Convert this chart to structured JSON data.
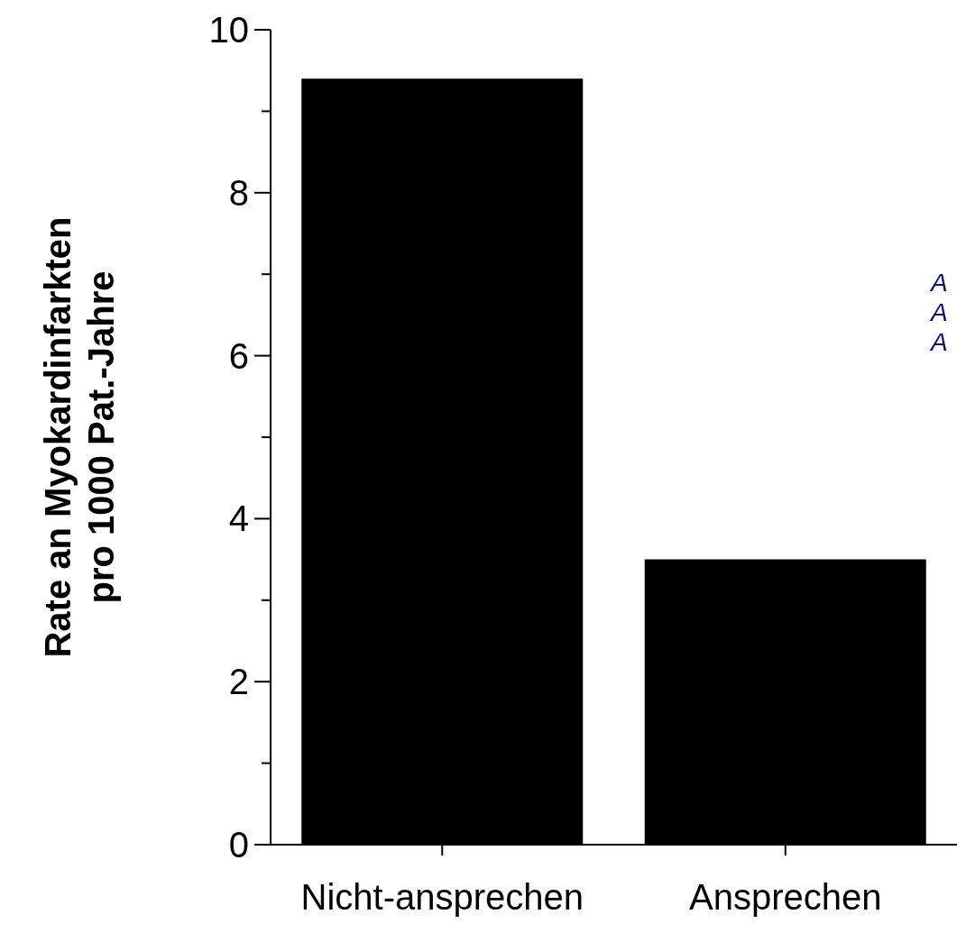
{
  "chart_data": {
    "type": "bar",
    "ylabel": "Rate an Myokardinfarkten\npro 1000 Pat.-Jahre",
    "categories": [
      "Nicht-ansprechen",
      "Ansprechen"
    ],
    "values": [
      9.4,
      3.5
    ],
    "color": "#000000",
    "ylim": [
      0,
      10
    ],
    "yticks": [
      0,
      {
        "value": 1,
        "label": null
      },
      2,
      {
        "value": 3,
        "label": null
      },
      4,
      {
        "value": 5,
        "label": null
      },
      6,
      {
        "value": 7,
        "label": null
      },
      8,
      {
        "value": 9,
        "label": null
      },
      10
    ],
    "grid": false,
    "legend": false,
    "annotations": [
      "A",
      "A",
      "A"
    ]
  }
}
